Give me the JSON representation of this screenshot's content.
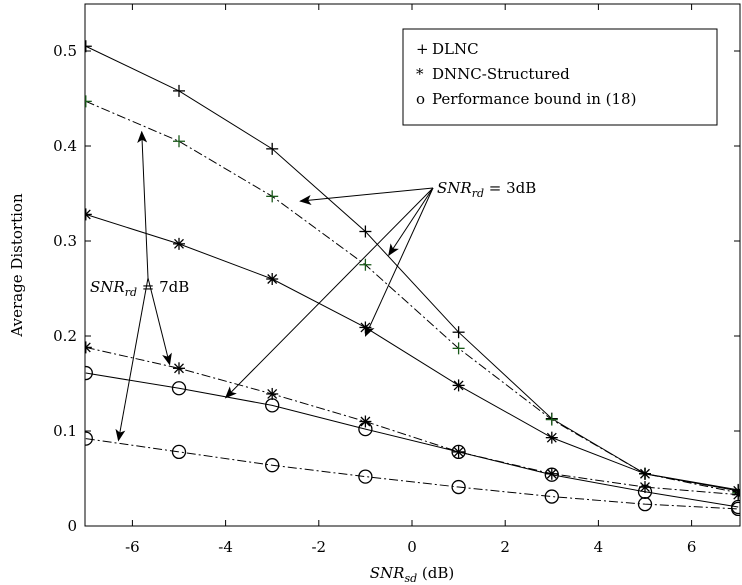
{
  "chart_data": {
    "type": "line",
    "xlabel_main": "SNR",
    "xlabel_sub": "sd",
    "xlabel_unit": " (dB)",
    "ylabel": "Average Distortion",
    "xlim": [
      -7,
      7
    ],
    "ylim": [
      0,
      0.55
    ],
    "xticks": [
      -6,
      -4,
      -2,
      0,
      2,
      4,
      6
    ],
    "xtick_labels": [
      "-6",
      "-4",
      "-2",
      "0",
      "2",
      "4",
      "6"
    ],
    "yticks": [
      0,
      0.1,
      0.2,
      0.3,
      0.4,
      0.5
    ],
    "ytick_labels": [
      "0",
      "0.1",
      "0.2",
      "0.3",
      "0.4",
      "0.5"
    ],
    "grid": false,
    "legend_position": "top-right",
    "legend": [
      {
        "marker_symbol": "+",
        "label": "DLNC"
      },
      {
        "marker_symbol": "*",
        "label": "DNNC-Structured"
      },
      {
        "marker_symbol": "o",
        "label": "Performance bound in (18)"
      }
    ],
    "series": [
      {
        "marker": "plus",
        "linestyle": "solid",
        "color": "#000000",
        "x": [
          -7,
          -5,
          -3,
          -1,
          1,
          3,
          5,
          7
        ],
        "y": [
          0.505,
          0.458,
          0.397,
          0.31,
          0.204,
          0.113,
          0.055,
          0.038
        ]
      },
      {
        "marker": "plus",
        "linestyle": "dashdot",
        "color": "#1a5a1a",
        "x": [
          -7,
          -5,
          -3,
          -1,
          1,
          3,
          5,
          7
        ],
        "y": [
          0.447,
          0.405,
          0.347,
          0.275,
          0.187,
          0.112,
          0.055,
          0.035
        ]
      },
      {
        "marker": "star",
        "linestyle": "solid",
        "color": "#000000",
        "x": [
          -7,
          -5,
          -3,
          -1,
          1,
          3,
          5,
          7
        ],
        "y": [
          0.328,
          0.297,
          0.26,
          0.209,
          0.148,
          0.093,
          0.055,
          0.037
        ]
      },
      {
        "marker": "star",
        "linestyle": "dashdot",
        "color": "#000000",
        "x": [
          -7,
          -5,
          -3,
          -1,
          1,
          3,
          5,
          7
        ],
        "y": [
          0.188,
          0.166,
          0.139,
          0.11,
          0.078,
          0.055,
          0.041,
          0.033
        ]
      },
      {
        "marker": "circle",
        "linestyle": "solid",
        "color": "#000000",
        "x": [
          -7,
          -5,
          -3,
          -1,
          1,
          3,
          5,
          7
        ],
        "y": [
          0.161,
          0.145,
          0.127,
          0.102,
          0.078,
          0.054,
          0.036,
          0.02
        ]
      },
      {
        "marker": "circle",
        "linestyle": "dashdot",
        "color": "#000000",
        "x": [
          -7,
          -5,
          -3,
          -1,
          1,
          3,
          5,
          7
        ],
        "y": [
          0.092,
          0.078,
          0.064,
          0.052,
          0.041,
          0.031,
          0.023,
          0.018
        ]
      }
    ],
    "annotations": [
      {
        "text_main": "SNR",
        "text_sub": "rd",
        "text_rest": " = 3dB",
        "arrows_to": [
          [
            -2.4,
            0.342
          ],
          [
            -0.5,
            0.285
          ],
          [
            -1.0,
            0.2
          ],
          [
            -4.0,
            0.135
          ]
        ]
      },
      {
        "text_main": "SNR",
        "text_sub": "rd",
        "text_rest": " = 7dB",
        "arrows_to": [
          [
            -5.8,
            0.415
          ],
          [
            -5.2,
            0.17
          ],
          [
            -6.3,
            0.09
          ]
        ]
      }
    ]
  }
}
